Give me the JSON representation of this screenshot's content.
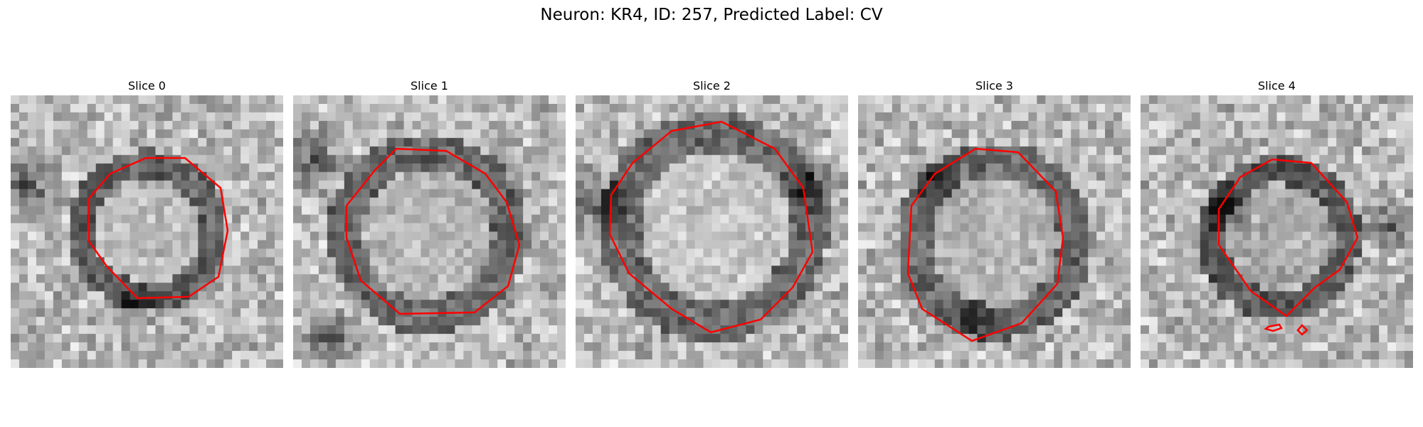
{
  "figure": {
    "title": "Neuron: KR4, ID: 257, Predicted Label: CV"
  },
  "panels": [
    {
      "title": "Slice 0"
    },
    {
      "title": "Slice 1"
    },
    {
      "title": "Slice 2"
    },
    {
      "title": "Slice 3"
    },
    {
      "title": "Slice 4"
    }
  ],
  "colors": {
    "contour": "#ff0000",
    "background": "#ffffff"
  }
}
